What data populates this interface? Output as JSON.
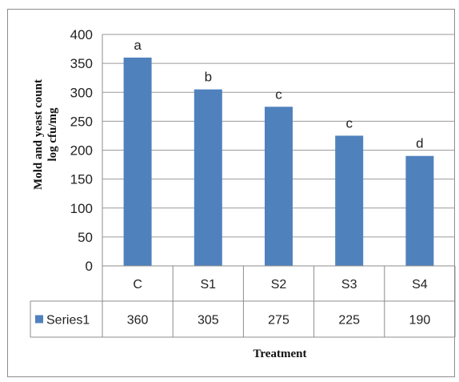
{
  "chart_data": {
    "type": "bar",
    "categories": [
      "C",
      "S1",
      "S2",
      "S3",
      "S4"
    ],
    "series": [
      {
        "name": "Series1",
        "values": [
          360,
          305,
          275,
          225,
          190
        ],
        "color": "#4f81bd"
      }
    ],
    "significance_letters": [
      "a",
      "b",
      "c",
      "c",
      "d"
    ],
    "ylabel_line1": "Mold and yeast count",
    "ylabel_line2": "log cfu/mg",
    "xlabel": "Treatment",
    "ylim": [
      0,
      400
    ],
    "yticks": [
      0,
      50,
      100,
      150,
      200,
      250,
      300,
      350,
      400
    ],
    "grid": true,
    "legend": "data-table",
    "table_values": [
      "360",
      "305",
      "275",
      "225",
      "190"
    ]
  }
}
